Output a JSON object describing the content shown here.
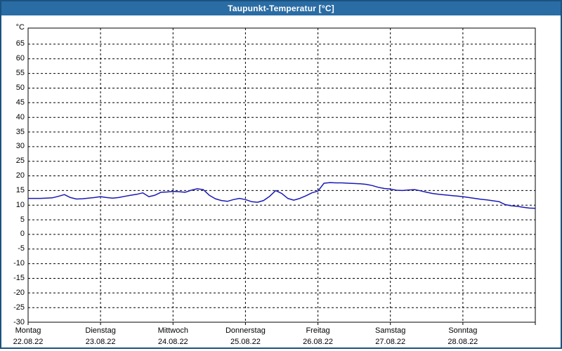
{
  "window": {
    "title": "Taupunkt-Temperatur [°C]",
    "titlebar_color": "#2a6ca4",
    "border_color": "#1a5280",
    "background_color": "#ffffff"
  },
  "chart_data": {
    "type": "line",
    "title": "Taupunkt-Temperatur [°C]",
    "y_unit_label": "°C",
    "xlabel": "",
    "ylabel": "°C",
    "ylim": [
      -30,
      70.5
    ],
    "xlim": [
      0,
      168
    ],
    "x_unit": "hours_since_monday_00:00",
    "grid": "dashed-black-both-axes",
    "legend_position": "none",
    "line_color": "#1a1ab4",
    "y_ticks": [
      65,
      60,
      55,
      50,
      45,
      40,
      35,
      30,
      25,
      20,
      15,
      10,
      5,
      0,
      -5,
      -10,
      -15,
      -20,
      -25,
      -30
    ],
    "x_day_ticks": [
      {
        "hour": 0,
        "label": "Montag",
        "date": "22.08.22"
      },
      {
        "hour": 24,
        "label": "Dienstag",
        "date": "23.08.22"
      },
      {
        "hour": 48,
        "label": "Mittwoch",
        "date": "24.08.22"
      },
      {
        "hour": 72,
        "label": "Donnerstag",
        "date": "25.08.22"
      },
      {
        "hour": 96,
        "label": "Freitag",
        "date": "26.08.22"
      },
      {
        "hour": 120,
        "label": "Samstag",
        "date": "27.08.22"
      },
      {
        "hour": 144,
        "label": "Sonntag",
        "date": "28.08.22"
      }
    ],
    "series": [
      {
        "name": "Taupunkt-Temperatur",
        "color": "#1a1ab4",
        "x_step_hours": 2,
        "values": [
          12.3,
          12.3,
          12.3,
          12.4,
          12.5,
          13.0,
          13.6,
          12.6,
          12.1,
          12.2,
          12.4,
          12.6,
          12.9,
          12.6,
          12.4,
          12.6,
          13.0,
          13.4,
          13.7,
          14.2,
          12.9,
          13.4,
          14.4,
          14.5,
          14.7,
          14.6,
          14.4,
          15.1,
          15.6,
          15.3,
          13.4,
          12.2,
          11.6,
          11.3,
          11.9,
          12.3,
          11.9,
          11.2,
          11.0,
          11.6,
          13.0,
          15.0,
          14.0,
          12.3,
          11.7,
          12.3,
          13.2,
          14.2,
          14.8,
          17.5,
          17.7,
          17.6,
          17.6,
          17.5,
          17.4,
          17.3,
          17.1,
          16.7,
          16.1,
          15.7,
          15.5,
          15.1,
          15.0,
          15.2,
          15.3,
          14.9,
          14.4,
          14.0,
          13.7,
          13.5,
          13.3,
          13.1,
          12.9,
          12.6,
          12.3,
          12.0,
          11.8,
          11.5,
          11.2,
          10.2,
          9.8,
          9.6,
          9.3,
          9.0,
          8.9
        ]
      }
    ]
  }
}
